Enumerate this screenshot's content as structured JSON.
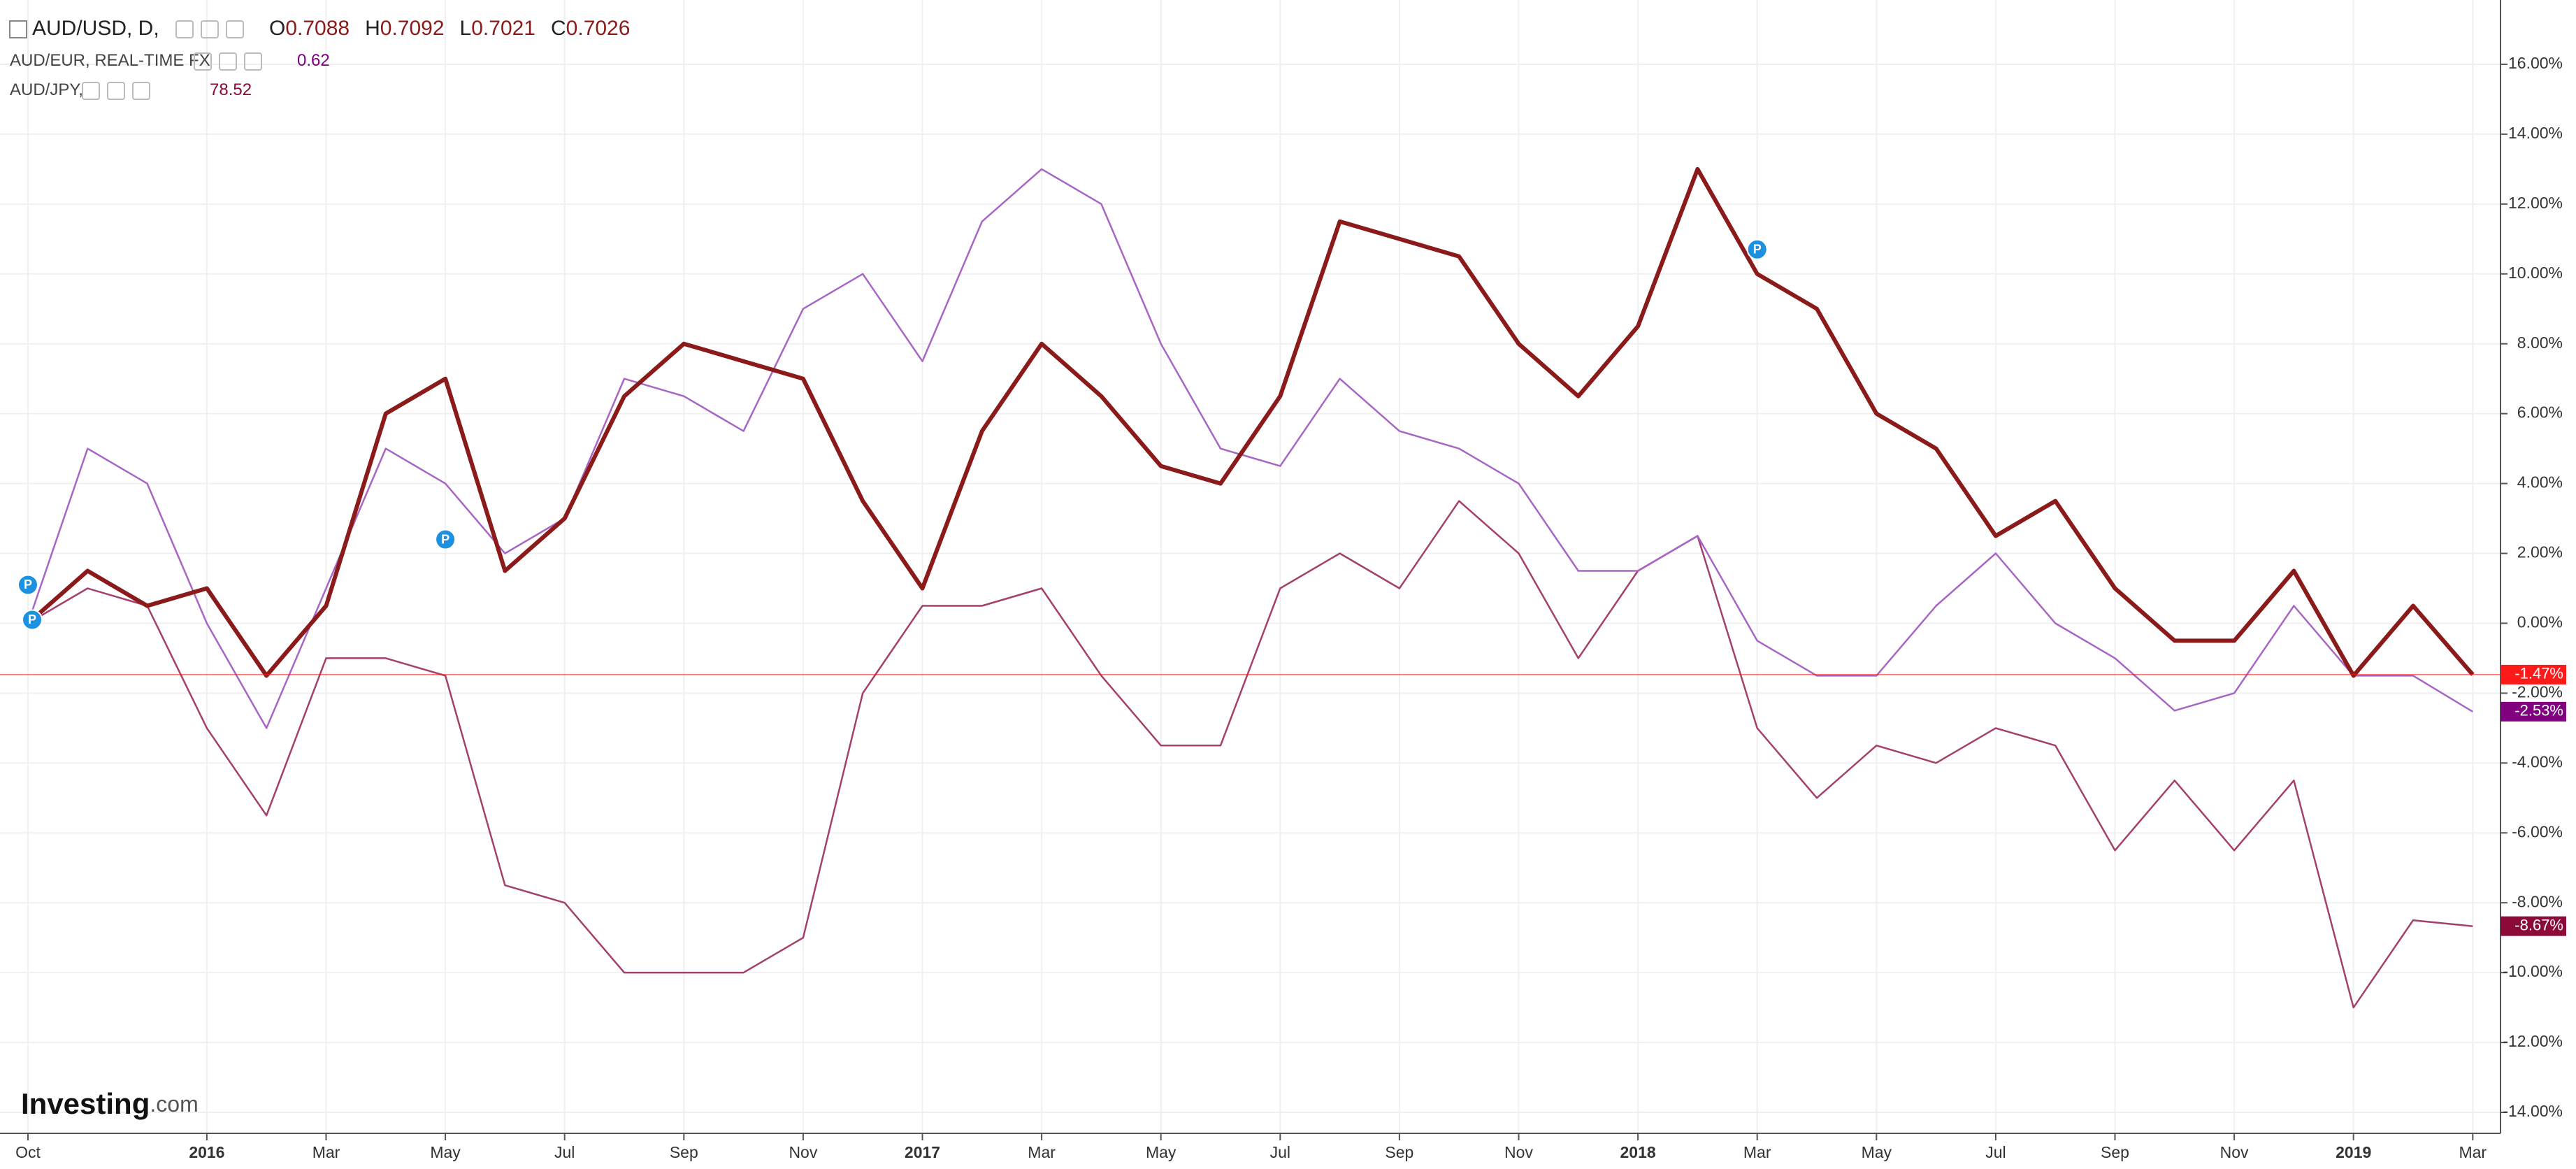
{
  "chart_data": {
    "type": "line",
    "x": [
      "2015-10",
      "2015-11",
      "2015-12",
      "2016-01",
      "2016-02",
      "2016-03",
      "2016-04",
      "2016-05",
      "2016-06",
      "2016-07",
      "2016-08",
      "2016-09",
      "2016-10",
      "2016-11",
      "2016-12",
      "2017-01",
      "2017-02",
      "2017-03",
      "2017-04",
      "2017-05",
      "2017-06",
      "2017-07",
      "2017-08",
      "2017-09",
      "2017-10",
      "2017-11",
      "2017-12",
      "2018-01",
      "2018-02",
      "2018-03",
      "2018-04",
      "2018-05",
      "2018-06",
      "2018-07",
      "2018-08",
      "2018-09",
      "2018-10",
      "2018-11",
      "2018-12",
      "2019-01",
      "2019-02",
      "2019-03"
    ],
    "series": [
      {
        "name": "AUD/USD, D,",
        "color": "#8b1a1a",
        "badge_color": "#ff1a1a",
        "quote": [
          {
            "key": "O",
            "value": 0.7088
          },
          {
            "key": "H",
            "value": 0.7092
          },
          {
            "key": "L",
            "value": 0.7021
          },
          {
            "key": "C",
            "value": 0.7026
          }
        ],
        "end_label": "-1.47%",
        "values": [
          0,
          1.5,
          0.5,
          1,
          -1.5,
          0.5,
          6,
          7,
          1.5,
          3,
          6.5,
          8,
          7.5,
          7,
          3.5,
          1,
          5.5,
          8,
          6.5,
          4.5,
          4,
          6.5,
          11.5,
          11,
          10.5,
          8,
          6.5,
          8.5,
          13,
          10,
          9,
          6,
          5,
          2.5,
          3.5,
          1,
          -0.5,
          -0.5,
          1.5,
          -1.5,
          0.5,
          -1.47
        ]
      },
      {
        "name": "AUD/EUR, REAL-TIME FX",
        "color": "#a866c4",
        "badge_color": "#800080",
        "quote": [
          {
            "value": 0.62
          }
        ],
        "end_label": "-2.53%",
        "values": [
          0,
          5,
          4,
          0,
          -3,
          1,
          5,
          4,
          2,
          3,
          7,
          6.5,
          5.5,
          9,
          10,
          7.5,
          11.5,
          13,
          12,
          8,
          5,
          4.5,
          7,
          5.5,
          5,
          4,
          1.5,
          1.5,
          2.5,
          -0.5,
          -1.5,
          -1.5,
          0.5,
          2,
          0,
          -1,
          -2.5,
          -2,
          0.5,
          -1.5,
          -1.5,
          -2.53
        ]
      },
      {
        "name": "AUD/JPY,",
        "color": "#a3406c",
        "badge_color": "#8b0a3a",
        "quote": [
          {
            "value": 78.52
          }
        ],
        "end_label": "-8.67%",
        "values": [
          0,
          1,
          0.5,
          -3,
          -5.5,
          -1,
          -1,
          -1.5,
          -7.5,
          -8,
          -10,
          -10,
          -10,
          -9,
          -2,
          0.5,
          0.5,
          1,
          -1.5,
          -3.5,
          -3.5,
          1,
          2,
          1,
          3.5,
          2,
          -1,
          1.5,
          2.5,
          -3,
          -5,
          -3.5,
          -4,
          -3,
          -3.5,
          -6.5,
          -4.5,
          -6.5,
          -4.5,
          -11,
          -8.5,
          -8.67
        ]
      }
    ],
    "ylim": [
      -14.6,
      17.6
    ],
    "yticks": [
      {
        "value": 16,
        "label": "16.00%"
      },
      {
        "value": 14,
        "label": "14.00%"
      },
      {
        "value": 12,
        "label": "12.00%"
      },
      {
        "value": 10,
        "label": "10.00%"
      },
      {
        "value": 8,
        "label": "8.00%"
      },
      {
        "value": 6,
        "label": "6.00%"
      },
      {
        "value": 4,
        "label": "4.00%"
      },
      {
        "value": 2,
        "label": "2.00%"
      },
      {
        "value": 0,
        "label": "0.00%"
      },
      {
        "value": -2,
        "label": "-2.00%"
      },
      {
        "value": -4,
        "label": "-4.00%"
      },
      {
        "value": -6,
        "label": "-6.00%"
      },
      {
        "value": -8,
        "label": "-8.00%"
      },
      {
        "value": -10,
        "label": "-10.00%"
      },
      {
        "value": -12,
        "label": "-12.00%"
      },
      {
        "value": -14,
        "label": "-14.00%"
      }
    ],
    "xticks": [
      {
        "value": "2015-10",
        "label": "Oct"
      },
      {
        "value": "2016-01",
        "label": "2016"
      },
      {
        "value": "2016-03",
        "label": "Mar"
      },
      {
        "value": "2016-05",
        "label": "May"
      },
      {
        "value": "2016-07",
        "label": "Jul"
      },
      {
        "value": "2016-09",
        "label": "Sep"
      },
      {
        "value": "2016-11",
        "label": "Nov"
      },
      {
        "value": "2017-01",
        "label": "2017"
      },
      {
        "value": "2017-03",
        "label": "Mar"
      },
      {
        "value": "2017-05",
        "label": "May"
      },
      {
        "value": "2017-07",
        "label": "Jul"
      },
      {
        "value": "2017-09",
        "label": "Sep"
      },
      {
        "value": "2017-11",
        "label": "Nov"
      },
      {
        "value": "2018-01",
        "label": "2018"
      },
      {
        "value": "2018-03",
        "label": "Mar"
      },
      {
        "value": "2018-05",
        "label": "May"
      },
      {
        "value": "2018-07",
        "label": "Jul"
      },
      {
        "value": "2018-09",
        "label": "Sep"
      },
      {
        "value": "2018-11",
        "label": "Nov"
      },
      {
        "value": "2019-01",
        "label": "2019"
      },
      {
        "value": "2019-03",
        "label": "Mar"
      }
    ],
    "grid": true,
    "price_line": true,
    "event_markers": {
      "label": "P",
      "color": "#1e90e0",
      "points": [
        {
          "x": "2015-10",
          "y": 1.1
        },
        {
          "x": "2015-10",
          "y": 0.1
        },
        {
          "x": "2016-05",
          "y": 2.4
        },
        {
          "x": "2018-03",
          "y": 10.7
        }
      ]
    },
    "logo": {
      "main": "Investing",
      "suffix": ".com"
    }
  }
}
